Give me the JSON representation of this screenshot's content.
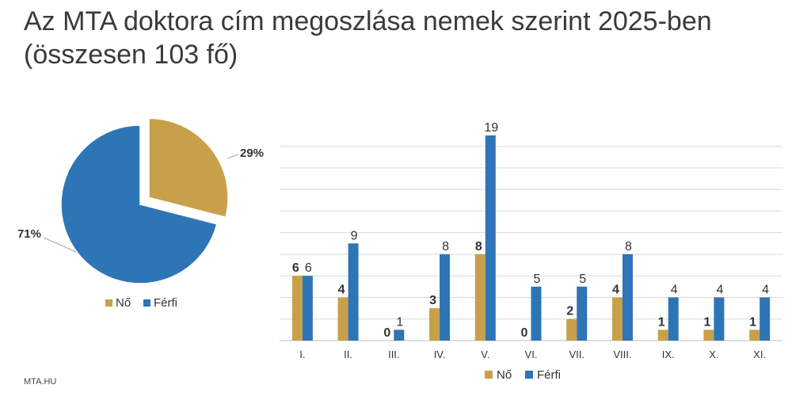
{
  "title_line1": "Az MTA doktora cím megoszlása nemek szerint 2025-ben",
  "title_line2": "(összesen 103 fő)",
  "footer": "MTA.HU",
  "colors": {
    "no": "#C9A04A",
    "ferfi": "#2E75B6",
    "grid": "#D9D9D9",
    "axis": "#BFBFBF"
  },
  "chart_data": [
    {
      "type": "pie",
      "slices": [
        {
          "name": "Nő",
          "label": "29%",
          "value": 29
        },
        {
          "name": "Férfi",
          "label": "71%",
          "value": 71
        }
      ],
      "legend": [
        "Nő",
        "Férfi"
      ],
      "legend_position": "bottom"
    },
    {
      "type": "bar",
      "categories": [
        "I.",
        "II.",
        "III.",
        "IV.",
        "V.",
        "VI.",
        "VII.",
        "VIII.",
        "IX.",
        "X.",
        "XI."
      ],
      "series": [
        {
          "name": "Nő",
          "values": [
            6,
            4,
            0,
            3,
            8,
            0,
            2,
            4,
            1,
            1,
            1
          ]
        },
        {
          "name": "Férfi",
          "values": [
            6,
            9,
            1,
            8,
            19,
            5,
            5,
            8,
            4,
            4,
            4
          ]
        }
      ],
      "ylim": [
        0,
        19
      ],
      "grid": true,
      "legend": [
        "Nő",
        "Férfi"
      ],
      "legend_position": "bottom"
    }
  ]
}
